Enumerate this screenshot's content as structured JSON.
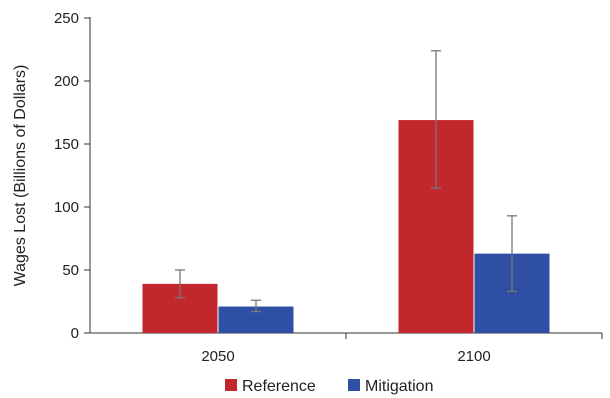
{
  "chart_data": {
    "type": "bar",
    "title": "",
    "xlabel": "",
    "ylabel": "Wages Lost (Billions of Dollars)",
    "ylim": [
      0,
      250
    ],
    "yticks": [
      "0",
      "50",
      "100",
      "150",
      "200",
      "250"
    ],
    "categories": [
      "2050",
      "2100"
    ],
    "series": [
      {
        "name": "Reference",
        "color": "#c1272d",
        "values": [
          39,
          169
        ],
        "error_low": [
          28,
          115
        ],
        "error_high": [
          50,
          224
        ]
      },
      {
        "name": "Mitigation",
        "color": "#2e4fa3",
        "values": [
          21,
          63
        ],
        "error_low": [
          17,
          33
        ],
        "error_high": [
          26,
          93
        ]
      }
    ],
    "grid": false,
    "legend_position": "bottom"
  }
}
